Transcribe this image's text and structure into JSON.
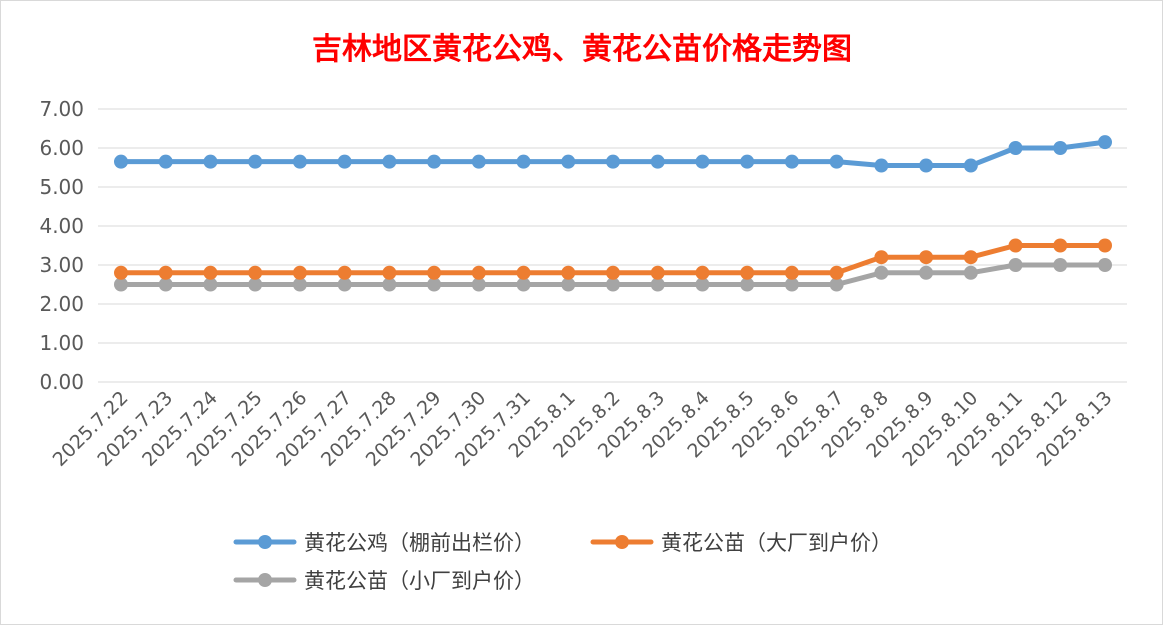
{
  "chart_data": {
    "type": "line",
    "title": "吉林地区黄花公鸡、黄花公苗价格走势图",
    "title_color": "#ff0000",
    "x": [
      "2025.7.22",
      "2025.7.23",
      "2025.7.24",
      "2025.7.25",
      "2025.7.26",
      "2025.7.27",
      "2025.7.28",
      "2025.7.29",
      "2025.7.30",
      "2025.7.31",
      "2025.8.1",
      "2025.8.2",
      "2025.8.3",
      "2025.8.4",
      "2025.8.5",
      "2025.8.6",
      "2025.8.7",
      "2025.8.8",
      "2025.8.9",
      "2025.8.10",
      "2025.8.11",
      "2025.8.12",
      "2025.8.13"
    ],
    "yticks": [
      "0.00",
      "1.00",
      "2.00",
      "3.00",
      "4.00",
      "5.00",
      "6.00",
      "7.00"
    ],
    "ylim": [
      0,
      7
    ],
    "grid": true,
    "legend_position": "bottom",
    "series": [
      {
        "name": "黄花公鸡（棚前出栏价）",
        "color": "#5b9bd5",
        "values": [
          5.65,
          5.65,
          5.65,
          5.65,
          5.65,
          5.65,
          5.65,
          5.65,
          5.65,
          5.65,
          5.65,
          5.65,
          5.65,
          5.65,
          5.65,
          5.65,
          5.65,
          5.55,
          5.55,
          5.55,
          6.0,
          6.0,
          6.15
        ]
      },
      {
        "name": "黄花公苗（大厂到户价）",
        "color": "#ed7d31",
        "values": [
          2.8,
          2.8,
          2.8,
          2.8,
          2.8,
          2.8,
          2.8,
          2.8,
          2.8,
          2.8,
          2.8,
          2.8,
          2.8,
          2.8,
          2.8,
          2.8,
          2.8,
          3.2,
          3.2,
          3.2,
          3.5,
          3.5,
          3.5
        ]
      },
      {
        "name": "黄花公苗（小厂到户价）",
        "color": "#a5a5a5",
        "values": [
          2.5,
          2.5,
          2.5,
          2.5,
          2.5,
          2.5,
          2.5,
          2.5,
          2.5,
          2.5,
          2.5,
          2.5,
          2.5,
          2.5,
          2.5,
          2.5,
          2.5,
          2.8,
          2.8,
          2.8,
          3.0,
          3.0,
          3.0
        ]
      }
    ]
  }
}
